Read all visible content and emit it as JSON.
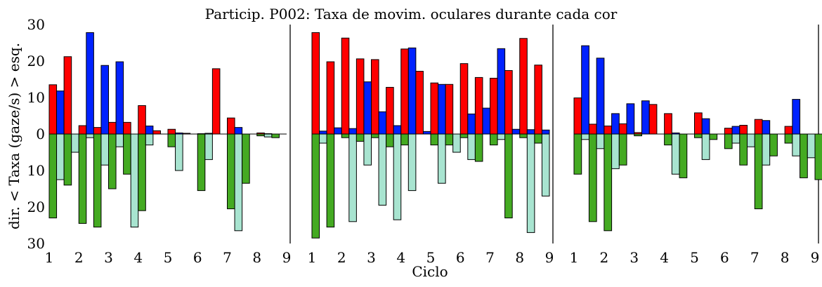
{
  "chart_data": {
    "type": "bar",
    "title": "Particip. P002: Taxa de movim. oculares durante cada cor",
    "xlabel": "Ciclo",
    "ylabel": "dir. < Taxa (gaze/s) > esq.",
    "ylim": [
      -30,
      30
    ],
    "yticks": [
      30,
      20,
      10,
      0,
      10,
      20,
      30
    ],
    "ytick_values": [
      30,
      20,
      10,
      0,
      -10,
      -20,
      -30
    ],
    "xticks": [
      "1",
      "2",
      "3",
      "4",
      "5",
      "6",
      "7",
      "8",
      "9"
    ],
    "xlim": [
      1,
      9
    ],
    "grid": false,
    "colors": {
      "left_1": "#ff0000",
      "left_2": "#0022ff",
      "right_1": "#44aa22",
      "right_2": "#a8e4d0",
      "edge": "#000000"
    },
    "panels": [
      {
        "cycles": [
          {
            "cycle": 1,
            "left": [
              13.5,
              11.8,
              21.2
            ],
            "right": [
              -23.0,
              -12.5,
              -14.0,
              -5.0
            ]
          },
          {
            "cycle": 2,
            "left": [
              2.3,
              27.8,
              1.8,
              18.8
            ],
            "right": [
              -24.5,
              -1.0,
              -25.5,
              -8.5
            ]
          },
          {
            "cycle": 3,
            "left": [
              3.2,
              19.8,
              3.2
            ],
            "right": [
              -15.0,
              -3.5,
              -11.0,
              -25.5
            ]
          },
          {
            "cycle": 4,
            "left": [
              7.8,
              2.2,
              0.9
            ],
            "right": [
              -21.0,
              -3.0
            ]
          },
          {
            "cycle": 5,
            "left": [
              1.3,
              0.3,
              0.2
            ],
            "right": [
              -3.5,
              -10.0
            ]
          },
          {
            "cycle": 6,
            "left": [
              0.1,
              0.2,
              17.9
            ],
            "right": [
              -15.5,
              -7.0
            ]
          },
          {
            "cycle": 7,
            "left": [
              4.4,
              1.8
            ],
            "right": [
              -20.5,
              -26.5,
              -13.5
            ]
          },
          {
            "cycle": 8,
            "left": [
              0.3,
              0.1
            ],
            "right": [
              -0.5,
              -0.8,
              -1.0
            ]
          }
        ]
      },
      {
        "cycles": [
          {
            "cycle": 1,
            "left": [
              27.8,
              0.8,
              19.8,
              1.7
            ],
            "right": [
              -28.5,
              -2.5,
              -25.5
            ]
          },
          {
            "cycle": 2,
            "left": [
              26.3,
              1.5,
              20.6,
              14.3
            ],
            "right": [
              -1.0,
              -24.0,
              -2.0,
              -8.5
            ]
          },
          {
            "cycle": 3,
            "left": [
              20.4,
              6.1,
              12.8,
              2.3
            ],
            "right": [
              -1.0,
              -19.5,
              -3.5,
              -23.5
            ]
          },
          {
            "cycle": 4,
            "left": [
              23.3,
              23.6,
              17.2,
              0.7
            ],
            "right": [
              -3.0,
              -15.5
            ]
          },
          {
            "cycle": 5,
            "left": [
              14.0,
              13.6,
              13.6
            ],
            "right": [
              -3.0,
              -13.5,
              -3.0,
              -5.0
            ]
          },
          {
            "cycle": 6,
            "left": [
              19.3,
              5.5,
              15.5,
              7.1
            ],
            "right": [
              -1.0,
              -7.0,
              -7.5
            ]
          },
          {
            "cycle": 7,
            "left": [
              15.3,
              23.4,
              17.4,
              1.3
            ],
            "right": [
              -3.0,
              -1.5,
              -23.0
            ]
          },
          {
            "cycle": 8,
            "left": [
              26.2,
              1.2,
              18.9,
              1.1
            ],
            "right": [
              -1.0,
              -27.0,
              -2.5,
              -17.0
            ]
          }
        ]
      },
      {
        "cycles": [
          {
            "cycle": 1,
            "left": [
              9.9,
              24.2,
              2.7,
              20.8
            ],
            "right": [
              -11.0,
              -1.5,
              -24.0,
              -4.0
            ]
          },
          {
            "cycle": 2,
            "left": [
              2.2,
              5.6,
              2.8,
              8.3
            ],
            "right": [
              -26.5,
              -9.5,
              -8.5
            ]
          },
          {
            "cycle": 3,
            "left": [
              0.4,
              9.1,
              8.1
            ],
            "right": [
              -0.5
            ]
          },
          {
            "cycle": 4,
            "left": [
              5.6,
              0.3
            ],
            "right": [
              -3.0,
              -11.0,
              -12.0
            ]
          },
          {
            "cycle": 5,
            "left": [
              5.8,
              4.2
            ],
            "right": [
              -1.0,
              -7.0,
              -1.5
            ]
          },
          {
            "cycle": 6,
            "left": [
              1.6,
              2.1,
              2.4
            ],
            "right": [
              -4.0,
              -2.5,
              -8.5,
              -3.5
            ]
          },
          {
            "cycle": 7,
            "left": [
              4.0,
              3.7
            ],
            "right": [
              -20.5,
              -8.5,
              -6.0
            ]
          },
          {
            "cycle": 8,
            "left": [
              2.1,
              9.5
            ],
            "right": [
              -2.5,
              -6.0,
              -12.0,
              -6.5
            ]
          },
          {
            "cycle": 9,
            "left": [],
            "right": [
              -12.5
            ]
          }
        ]
      }
    ]
  }
}
